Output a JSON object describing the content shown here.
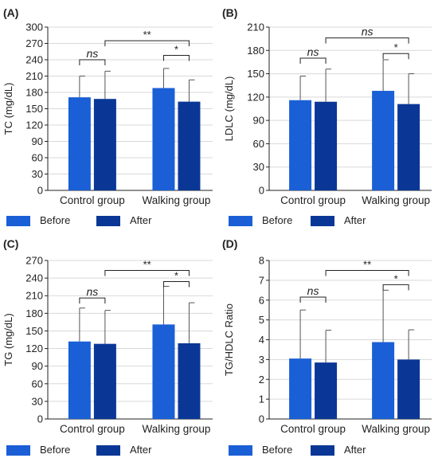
{
  "colors": {
    "before": "#1a5fd6",
    "after": "#0a3796",
    "grid": "#d9d9d9",
    "axis": "#222222"
  },
  "legend": {
    "before": "Before",
    "after": "After"
  },
  "chart_data": [
    {
      "type": "bar",
      "panel_label": "(A)",
      "ylabel": "TC (mg/dL)",
      "ylim": [
        0,
        300
      ],
      "yticks": [
        0,
        30,
        60,
        90,
        120,
        150,
        180,
        210,
        240,
        270,
        300
      ],
      "categories": [
        "Control group",
        "Walking group"
      ],
      "series": [
        {
          "name": "Before",
          "values": [
            171,
            188
          ],
          "errors": [
            39,
            36
          ]
        },
        {
          "name": "After",
          "values": [
            168,
            163
          ],
          "errors": [
            51,
            40
          ]
        }
      ],
      "annotations": [
        {
          "label": "ns",
          "italic": true,
          "group": 0,
          "type": "within",
          "level": 240
        },
        {
          "label": "*",
          "italic": false,
          "group": 1,
          "type": "within",
          "level": 248
        },
        {
          "label": "**",
          "italic": false,
          "type": "across",
          "level": 275
        }
      ]
    },
    {
      "type": "bar",
      "panel_label": "(B)",
      "ylabel": "LDLC (mg/dL)",
      "ylim": [
        0,
        210
      ],
      "yticks": [
        0,
        30,
        60,
        90,
        120,
        150,
        180,
        210
      ],
      "categories": [
        "Control group",
        "Walking group"
      ],
      "series": [
        {
          "name": "Before",
          "values": [
            116,
            128
          ],
          "errors": [
            31,
            40
          ]
        },
        {
          "name": "After",
          "values": [
            114,
            111
          ],
          "errors": [
            42,
            39
          ]
        }
      ],
      "annotations": [
        {
          "label": "ns",
          "italic": true,
          "group": 0,
          "type": "within",
          "level": 170
        },
        {
          "label": "*",
          "italic": false,
          "group": 1,
          "type": "within",
          "level": 176
        },
        {
          "label": "ns",
          "italic": true,
          "type": "across",
          "level": 196
        }
      ]
    },
    {
      "type": "bar",
      "panel_label": "(C)",
      "ylabel": "TG (mg/dL)",
      "ylim": [
        0,
        270
      ],
      "yticks": [
        0,
        30,
        60,
        90,
        120,
        150,
        180,
        210,
        240,
        270
      ],
      "categories": [
        "Control group",
        "Walking group"
      ],
      "series": [
        {
          "name": "Before",
          "values": [
            132,
            161
          ],
          "errors": [
            57,
            65
          ]
        },
        {
          "name": "After",
          "values": [
            128,
            129
          ],
          "errors": [
            57,
            69
          ]
        }
      ],
      "annotations": [
        {
          "label": "ns",
          "italic": true,
          "group": 0,
          "type": "within",
          "level": 206
        },
        {
          "label": "*",
          "italic": false,
          "group": 1,
          "type": "within",
          "level": 234
        },
        {
          "label": "**",
          "italic": false,
          "type": "across",
          "level": 253
        }
      ]
    },
    {
      "type": "bar",
      "panel_label": "(D)",
      "ylabel": "TG/HDLC Ratio",
      "ylim": [
        0,
        8
      ],
      "yticks": [
        0,
        1,
        2,
        3,
        4,
        5,
        6,
        7,
        8
      ],
      "categories": [
        "Control group",
        "Walking group"
      ],
      "series": [
        {
          "name": "Before",
          "values": [
            3.05,
            3.88
          ],
          "errors": [
            2.45,
            2.62
          ]
        },
        {
          "name": "After",
          "values": [
            2.85,
            3.0
          ],
          "errors": [
            1.63,
            1.5
          ]
        }
      ],
      "annotations": [
        {
          "label": "ns",
          "italic": true,
          "group": 0,
          "type": "within",
          "level": 6.15
        },
        {
          "label": "*",
          "italic": false,
          "group": 1,
          "type": "within",
          "level": 6.78
        },
        {
          "label": "**",
          "italic": false,
          "type": "across",
          "level": 7.5
        }
      ]
    }
  ]
}
